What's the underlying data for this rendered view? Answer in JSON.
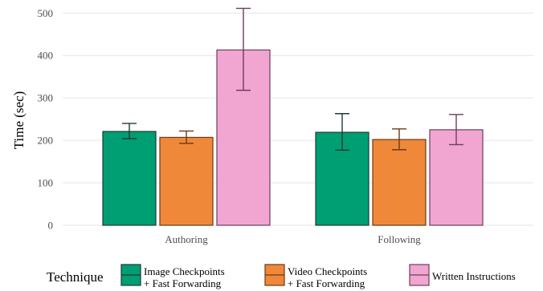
{
  "chart_data": {
    "type": "bar",
    "categories": [
      "Authoring",
      "Following"
    ],
    "ylabel": "Time (sec)",
    "xlabel": "",
    "ylim": [
      0,
      520
    ],
    "yticks": [
      0,
      100,
      200,
      300,
      400,
      500
    ],
    "grid": true,
    "legend_position": "bottom",
    "legend_title": "Technique",
    "series": [
      {
        "name": "Image Checkpoints + Fast Forwarding",
        "label_lines": [
          "Image Checkpoints",
          "+ Fast Forwarding"
        ],
        "values": [
          221,
          219
        ],
        "error_low": [
          204,
          177
        ],
        "error_high": [
          240,
          263
        ],
        "fill": "#009E73",
        "stroke": "#1f3b30"
      },
      {
        "name": "Video Checkpoints + Fast Forwarding",
        "label_lines": [
          "Video Checkpoints",
          "+ Fast Forwarding"
        ],
        "values": [
          207,
          202
        ],
        "error_low": [
          193,
          178
        ],
        "error_high": [
          222,
          227
        ],
        "fill": "#F0883A",
        "stroke": "#6b3a14"
      },
      {
        "name": "Written Instructions",
        "label_lines": [
          "Written Instructions"
        ],
        "values": [
          413,
          225
        ],
        "error_low": [
          318,
          190
        ],
        "error_high": [
          511,
          261
        ],
        "fill": "#F0A6D0",
        "stroke": "#6e3d5b"
      }
    ]
  }
}
